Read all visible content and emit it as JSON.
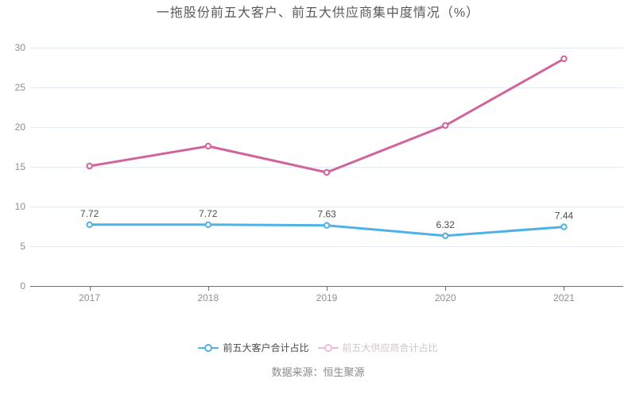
{
  "chart_data": {
    "type": "line",
    "title": "一拖股份前五大客户、前五大供应商集中度情况（%）",
    "categories": [
      "2017",
      "2018",
      "2019",
      "2020",
      "2021"
    ],
    "series": [
      {
        "name": "前五大客户合计占比",
        "color": "#4FB2E6",
        "values": [
          7.72,
          7.72,
          7.63,
          6.32,
          7.44
        ],
        "point_labels": [
          "7.72",
          "7.72",
          "7.63",
          "6.32",
          "7.44"
        ],
        "labels_visible": true
      },
      {
        "name": "前五大供应商合计占比",
        "color": "#D2649C",
        "values": [
          15.1,
          17.6,
          14.3,
          20.2,
          28.6
        ],
        "point_labels": [],
        "labels_visible": false
      }
    ],
    "xlabel": "",
    "ylabel": "",
    "ylim": [
      0,
      30
    ],
    "y_ticks": [
      0,
      5,
      10,
      15,
      20,
      25,
      30
    ],
    "grid": true,
    "legend_position": "bottom",
    "style": {
      "grid_color": "#E4EAF4",
      "axis_color": "#6E7079",
      "axis_label_color": "#8F8F8F",
      "point_label_color": "#4D4D4D",
      "marker_fill": "#FFFFFF"
    }
  },
  "legend": {
    "items": [
      {
        "label": "前五大客户合计占比",
        "icon_color": "#4FB2E6",
        "text_color": "#4A4A4A"
      },
      {
        "label": "前五大供应商合计占比",
        "icon_color": "#EDBBD6",
        "text_color": "#CDC6CB"
      }
    ]
  },
  "footer": {
    "source": "数据来源：恒生聚源"
  }
}
